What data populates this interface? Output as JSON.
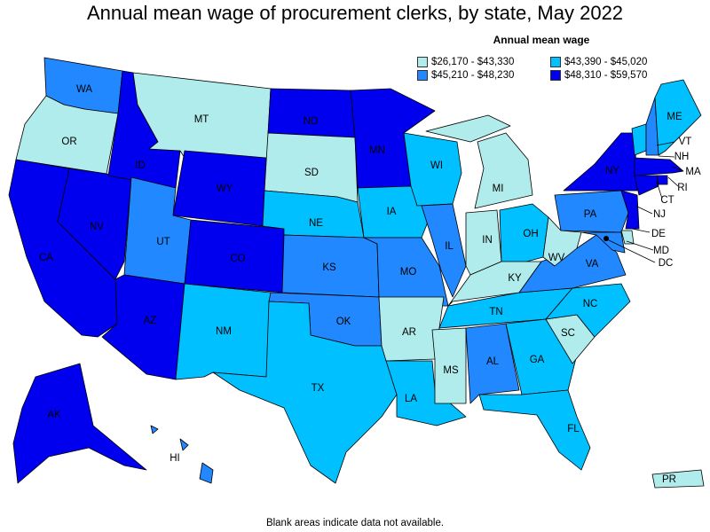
{
  "title": "Annual mean wage of procurement clerks, by state, May 2022",
  "legend": {
    "title": "Annual mean wage",
    "items": [
      {
        "label": "$26,170 - $43,330",
        "color": "#b0ecec"
      },
      {
        "label": "$43,390 - $45,020",
        "color": "#00c0ff"
      },
      {
        "label": "$45,210 - $48,230",
        "color": "#2288ff"
      },
      {
        "label": "$48,310 - $59,570",
        "color": "#0000ee"
      }
    ]
  },
  "footnote": "Blank areas indicate data not available.",
  "states": [
    {
      "abbr": "WA",
      "bin": 2
    },
    {
      "abbr": "OR",
      "bin": 0
    },
    {
      "abbr": "CA",
      "bin": 3
    },
    {
      "abbr": "NV",
      "bin": 3
    },
    {
      "abbr": "ID",
      "bin": 3
    },
    {
      "abbr": "MT",
      "bin": 0
    },
    {
      "abbr": "WY",
      "bin": 3
    },
    {
      "abbr": "UT",
      "bin": 2
    },
    {
      "abbr": "AZ",
      "bin": 3
    },
    {
      "abbr": "CO",
      "bin": 3
    },
    {
      "abbr": "NM",
      "bin": 1
    },
    {
      "abbr": "ND",
      "bin": 3
    },
    {
      "abbr": "SD",
      "bin": 0
    },
    {
      "abbr": "NE",
      "bin": 1
    },
    {
      "abbr": "KS",
      "bin": 2
    },
    {
      "abbr": "OK",
      "bin": 2
    },
    {
      "abbr": "TX",
      "bin": 1
    },
    {
      "abbr": "MN",
      "bin": 3
    },
    {
      "abbr": "IA",
      "bin": 1
    },
    {
      "abbr": "MO",
      "bin": 2
    },
    {
      "abbr": "AR",
      "bin": 0
    },
    {
      "abbr": "LA",
      "bin": 1
    },
    {
      "abbr": "WI",
      "bin": 1
    },
    {
      "abbr": "IL",
      "bin": 2
    },
    {
      "abbr": "MI",
      "bin": 0
    },
    {
      "abbr": "IN",
      "bin": 0
    },
    {
      "abbr": "OH",
      "bin": 1
    },
    {
      "abbr": "KY",
      "bin": 0
    },
    {
      "abbr": "TN",
      "bin": 1
    },
    {
      "abbr": "MS",
      "bin": 0
    },
    {
      "abbr": "AL",
      "bin": 2
    },
    {
      "abbr": "GA",
      "bin": 1
    },
    {
      "abbr": "FL",
      "bin": 1
    },
    {
      "abbr": "SC",
      "bin": 0
    },
    {
      "abbr": "NC",
      "bin": 1
    },
    {
      "abbr": "VA",
      "bin": 2
    },
    {
      "abbr": "WV",
      "bin": 0
    },
    {
      "abbr": "PA",
      "bin": 2
    },
    {
      "abbr": "NY",
      "bin": 3
    },
    {
      "abbr": "VT",
      "bin": 1
    },
    {
      "abbr": "NH",
      "bin": 2
    },
    {
      "abbr": "ME",
      "bin": 1
    },
    {
      "abbr": "MA",
      "bin": 3
    },
    {
      "abbr": "RI",
      "bin": 3
    },
    {
      "abbr": "CT",
      "bin": 3
    },
    {
      "abbr": "NJ",
      "bin": 3
    },
    {
      "abbr": "DE",
      "bin": 0
    },
    {
      "abbr": "MD",
      "bin": 2
    },
    {
      "abbr": "DC",
      "bin": 3
    },
    {
      "abbr": "AK",
      "bin": 3
    },
    {
      "abbr": "HI",
      "bin": 2
    },
    {
      "abbr": "PR",
      "bin": 0
    }
  ]
}
